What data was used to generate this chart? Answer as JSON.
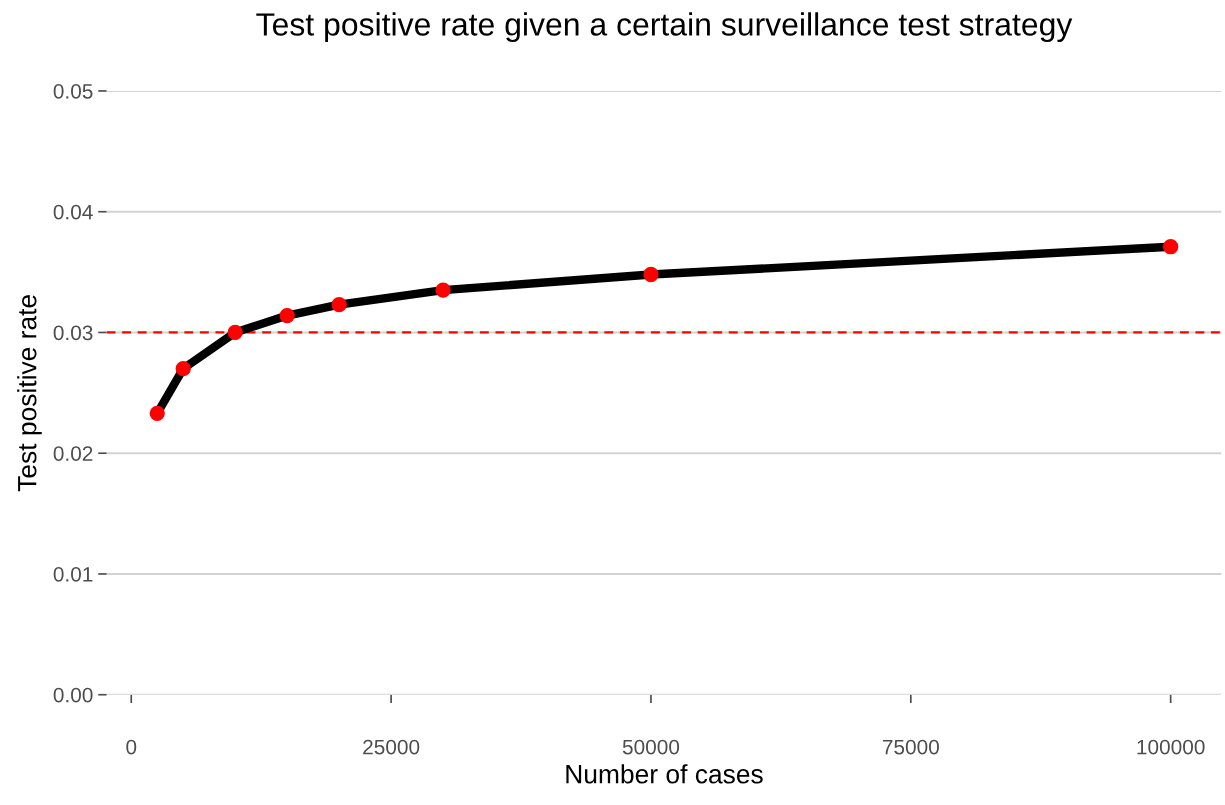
{
  "chart_data": {
    "type": "line",
    "title": "Test positive rate given a certain surveillance test strategy",
    "xlabel": "Number of cases",
    "ylabel": "Test positive rate",
    "x": [
      2500,
      5000,
      10000,
      15000,
      20000,
      30000,
      50000,
      100000
    ],
    "series": [
      {
        "color": "#000000",
        "values": [
          0.0233,
          0.027,
          0.03,
          0.0314,
          0.0323,
          0.0335,
          0.0348,
          0.0371
        ]
      }
    ],
    "marker": "circle",
    "xlim": [
      -2375,
      104875
    ],
    "xticks": [
      0,
      25000,
      50000,
      75000,
      100000
    ],
    "ylim": [
      0,
      0.05
    ],
    "yticks": [
      {
        "value": 0,
        "label": "0.00"
      },
      {
        "value": 0.01,
        "label": "0.01"
      },
      {
        "value": 0.02,
        "label": "0.02"
      },
      {
        "value": 0.03,
        "label": "0.03"
      },
      {
        "value": 0.04,
        "label": "0.04"
      },
      {
        "value": 0.05,
        "label": "0.05"
      }
    ],
    "ref_lines": [
      {
        "axis": "y",
        "value": 0.03,
        "color": "#ff0000",
        "line_style": "dashed"
      }
    ],
    "grid": "y"
  }
}
